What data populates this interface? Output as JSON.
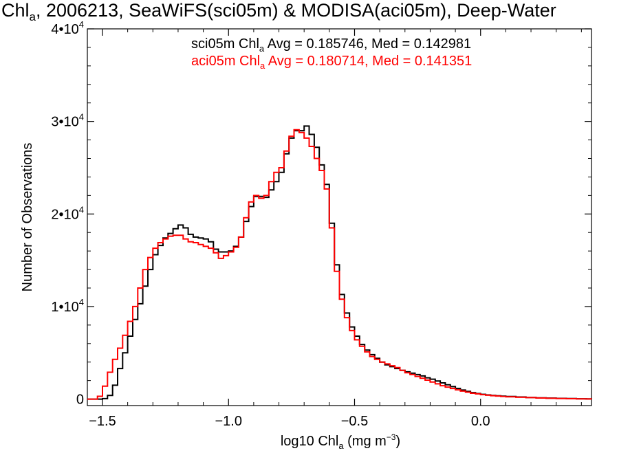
{
  "title": {
    "prefix": "Chl",
    "sub": "a",
    "rest": ", 2006213, SeaWiFS(sci05m) & MODISA(aci05m), Deep-Water"
  },
  "xlabel": {
    "prefix": "log10 Chl",
    "sub": "a",
    "unit": " (mg m",
    "sup": "−3",
    "close": ")"
  },
  "ylabel": "Number of Observations",
  "legend": [
    {
      "name_prefix": "sci05m Chl",
      "name_sub": "a",
      "stats": " Avg = 0.185746, Med = 0.142981",
      "color": "#000000"
    },
    {
      "name_prefix": "aci05m Chl",
      "name_sub": "a",
      "stats": " Avg = 0.180714, Med = 0.141351",
      "color": "#ff0000"
    }
  ],
  "chart_data": {
    "type": "line",
    "step": true,
    "xlim": [
      -1.56,
      0.44
    ],
    "ylim": [
      -700,
      40000
    ],
    "x_ticks": [
      {
        "value": -1.5,
        "label": "−1.5"
      },
      {
        "value": -1.0,
        "label": "−1.0"
      },
      {
        "value": -0.5,
        "label": "−0.5"
      },
      {
        "value": 0.0,
        "label": "0.0"
      }
    ],
    "y_ticks": [
      {
        "value": 0,
        "mant": "0",
        "exp": ""
      },
      {
        "value": 10000,
        "mant": "1•10",
        "exp": "4"
      },
      {
        "value": 20000,
        "mant": "2•10",
        "exp": "4"
      },
      {
        "value": 30000,
        "mant": "3•10",
        "exp": "4"
      },
      {
        "value": 40000,
        "mant": "4•10",
        "exp": "4"
      }
    ],
    "series": [
      {
        "name": "sci05m",
        "color": "#000000",
        "points": [
          [
            -1.56,
            0
          ],
          [
            -1.52,
            0
          ],
          [
            -1.5,
            50
          ],
          [
            -1.48,
            400
          ],
          [
            -1.46,
            1500
          ],
          [
            -1.44,
            3300
          ],
          [
            -1.42,
            5000
          ],
          [
            -1.4,
            6800
          ],
          [
            -1.38,
            8600
          ],
          [
            -1.36,
            10300
          ],
          [
            -1.34,
            12200
          ],
          [
            -1.32,
            14000
          ],
          [
            -1.3,
            15600
          ],
          [
            -1.28,
            16600
          ],
          [
            -1.26,
            17400
          ],
          [
            -1.24,
            17900
          ],
          [
            -1.22,
            18400
          ],
          [
            -1.2,
            18800
          ],
          [
            -1.18,
            18500
          ],
          [
            -1.16,
            17800
          ],
          [
            -1.14,
            17500
          ],
          [
            -1.12,
            17400
          ],
          [
            -1.1,
            17300
          ],
          [
            -1.08,
            17000
          ],
          [
            -1.06,
            16200
          ],
          [
            -1.04,
            15900
          ],
          [
            -1.02,
            15900
          ],
          [
            -1.0,
            16000
          ],
          [
            -0.98,
            16500
          ],
          [
            -0.96,
            17500
          ],
          [
            -0.94,
            19200
          ],
          [
            -0.92,
            20800
          ],
          [
            -0.9,
            21900
          ],
          [
            -0.88,
            21900
          ],
          [
            -0.86,
            21800
          ],
          [
            -0.84,
            22600
          ],
          [
            -0.82,
            23500
          ],
          [
            -0.8,
            24500
          ],
          [
            -0.78,
            26500
          ],
          [
            -0.76,
            28200
          ],
          [
            -0.74,
            29000
          ],
          [
            -0.72,
            29000
          ],
          [
            -0.7,
            29500
          ],
          [
            -0.68,
            28600
          ],
          [
            -0.66,
            27200
          ],
          [
            -0.64,
            25300
          ],
          [
            -0.62,
            23200
          ],
          [
            -0.6,
            19000
          ],
          [
            -0.58,
            14500
          ],
          [
            -0.56,
            11300
          ],
          [
            -0.54,
            9300
          ],
          [
            -0.52,
            7800
          ],
          [
            -0.5,
            6800
          ],
          [
            -0.48,
            5900
          ],
          [
            -0.46,
            5300
          ],
          [
            -0.44,
            4800
          ],
          [
            -0.42,
            4400
          ],
          [
            -0.4,
            4000
          ],
          [
            -0.38,
            3700
          ],
          [
            -0.36,
            3500
          ],
          [
            -0.34,
            3300
          ],
          [
            -0.32,
            3100
          ],
          [
            -0.3,
            2950
          ],
          [
            -0.28,
            2800
          ],
          [
            -0.26,
            2650
          ],
          [
            -0.24,
            2500
          ],
          [
            -0.22,
            2300
          ],
          [
            -0.2,
            2150
          ],
          [
            -0.18,
            1950
          ],
          [
            -0.16,
            1750
          ],
          [
            -0.14,
            1550
          ],
          [
            -0.12,
            1350
          ],
          [
            -0.1,
            1150
          ],
          [
            -0.08,
            980
          ],
          [
            -0.06,
            830
          ],
          [
            -0.04,
            700
          ],
          [
            -0.02,
            600
          ],
          [
            0.0,
            520
          ],
          [
            0.02,
            450
          ],
          [
            0.04,
            400
          ],
          [
            0.06,
            360
          ],
          [
            0.08,
            320
          ],
          [
            0.1,
            280
          ],
          [
            0.14,
            230
          ],
          [
            0.18,
            180
          ],
          [
            0.22,
            140
          ],
          [
            0.26,
            110
          ],
          [
            0.3,
            80
          ],
          [
            0.34,
            55
          ],
          [
            0.38,
            35
          ],
          [
            0.42,
            20
          ],
          [
            0.44,
            10
          ]
        ]
      },
      {
        "name": "aci05m",
        "color": "#ff0000",
        "points": [
          [
            -1.56,
            0
          ],
          [
            -1.54,
            0
          ],
          [
            -1.52,
            300
          ],
          [
            -1.5,
            1400
          ],
          [
            -1.48,
            2900
          ],
          [
            -1.46,
            4300
          ],
          [
            -1.44,
            5500
          ],
          [
            -1.42,
            6900
          ],
          [
            -1.4,
            8400
          ],
          [
            -1.38,
            10000
          ],
          [
            -1.36,
            12000
          ],
          [
            -1.34,
            14000
          ],
          [
            -1.32,
            15300
          ],
          [
            -1.3,
            16300
          ],
          [
            -1.28,
            16900
          ],
          [
            -1.26,
            17300
          ],
          [
            -1.24,
            17600
          ],
          [
            -1.22,
            17700
          ],
          [
            -1.2,
            17700
          ],
          [
            -1.18,
            17300
          ],
          [
            -1.16,
            17000
          ],
          [
            -1.14,
            16900
          ],
          [
            -1.12,
            16700
          ],
          [
            -1.1,
            16500
          ],
          [
            -1.08,
            16300
          ],
          [
            -1.06,
            15800
          ],
          [
            -1.04,
            15200
          ],
          [
            -1.02,
            15500
          ],
          [
            -1.0,
            15900
          ],
          [
            -0.98,
            16400
          ],
          [
            -0.96,
            17500
          ],
          [
            -0.94,
            19600
          ],
          [
            -0.92,
            21300
          ],
          [
            -0.9,
            22000
          ],
          [
            -0.88,
            21700
          ],
          [
            -0.86,
            22000
          ],
          [
            -0.84,
            23500
          ],
          [
            -0.82,
            24500
          ],
          [
            -0.8,
            25000
          ],
          [
            -0.78,
            26800
          ],
          [
            -0.76,
            28400
          ],
          [
            -0.74,
            29100
          ],
          [
            -0.72,
            28800
          ],
          [
            -0.7,
            28200
          ],
          [
            -0.68,
            27300
          ],
          [
            -0.66,
            26000
          ],
          [
            -0.64,
            24700
          ],
          [
            -0.62,
            22700
          ],
          [
            -0.6,
            18500
          ],
          [
            -0.58,
            13800
          ],
          [
            -0.56,
            10800
          ],
          [
            -0.54,
            8800
          ],
          [
            -0.52,
            7400
          ],
          [
            -0.5,
            6400
          ],
          [
            -0.48,
            5700
          ],
          [
            -0.46,
            5100
          ],
          [
            -0.44,
            4600
          ],
          [
            -0.42,
            4300
          ],
          [
            -0.4,
            4000
          ],
          [
            -0.38,
            3800
          ],
          [
            -0.36,
            3600
          ],
          [
            -0.34,
            3400
          ],
          [
            -0.32,
            3100
          ],
          [
            -0.3,
            2850
          ],
          [
            -0.28,
            2650
          ],
          [
            -0.26,
            2450
          ],
          [
            -0.24,
            2250
          ],
          [
            -0.22,
            2050
          ],
          [
            -0.2,
            1850
          ],
          [
            -0.18,
            1650
          ],
          [
            -0.16,
            1450
          ],
          [
            -0.14,
            1300
          ],
          [
            -0.12,
            1150
          ],
          [
            -0.1,
            1000
          ],
          [
            -0.08,
            870
          ],
          [
            -0.06,
            750
          ],
          [
            -0.04,
            640
          ],
          [
            -0.02,
            560
          ],
          [
            0.0,
            480
          ],
          [
            0.02,
            420
          ],
          [
            0.04,
            370
          ],
          [
            0.06,
            330
          ],
          [
            0.08,
            290
          ],
          [
            0.1,
            250
          ],
          [
            0.14,
            200
          ],
          [
            0.18,
            160
          ],
          [
            0.22,
            120
          ],
          [
            0.26,
            90
          ],
          [
            0.3,
            65
          ],
          [
            0.34,
            45
          ],
          [
            0.38,
            28
          ],
          [
            0.42,
            15
          ],
          [
            0.44,
            8
          ]
        ]
      }
    ]
  }
}
